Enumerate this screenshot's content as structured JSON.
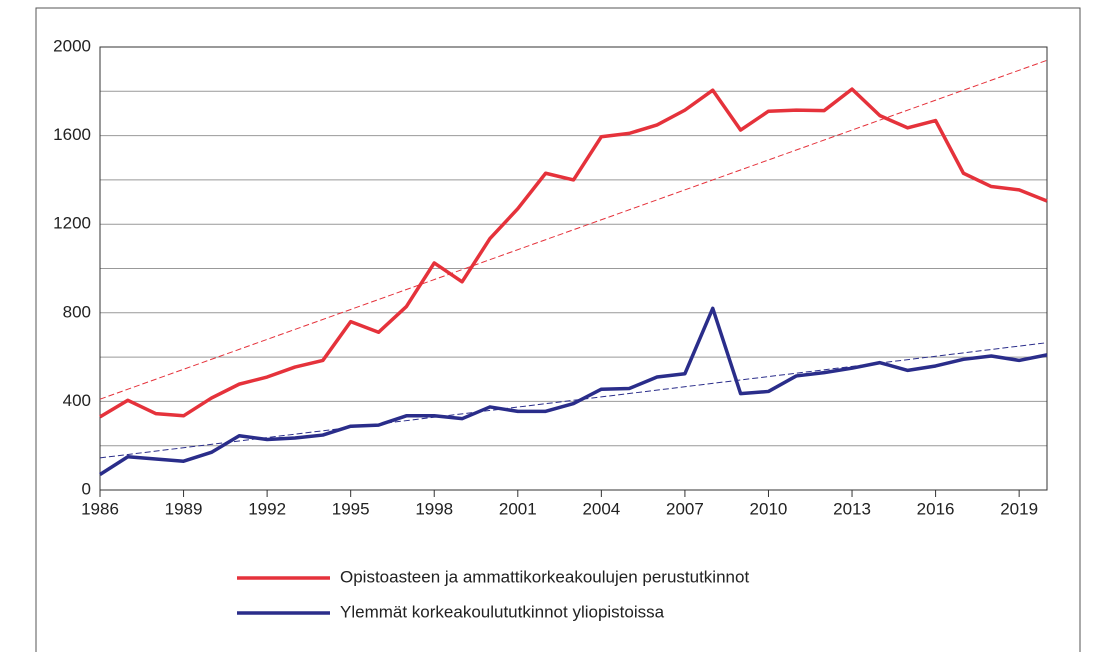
{
  "chart_data": {
    "type": "line",
    "x": [
      1986,
      1987,
      1988,
      1989,
      1990,
      1991,
      1992,
      1993,
      1994,
      1995,
      1996,
      1997,
      1998,
      1999,
      2000,
      2001,
      2002,
      2003,
      2004,
      2005,
      2006,
      2007,
      2008,
      2009,
      2010,
      2011,
      2012,
      2013,
      2014,
      2015,
      2016,
      2017,
      2018,
      2019,
      2020
    ],
    "series": [
      {
        "name": "Opistoasteen ja ammattikorkeakoulujen perustutkinnot",
        "color": "#e5323b",
        "values": [
          330,
          405,
          345,
          335,
          415,
          478,
          510,
          555,
          585,
          760,
          712,
          828,
          1025,
          940,
          1135,
          1270,
          1430,
          1400,
          1595,
          1610,
          1648,
          1715,
          1805,
          1625,
          1710,
          1715,
          1713,
          1810,
          1690,
          1635,
          1668,
          1430,
          1370,
          1355,
          1305
        ],
        "trend_values": [
          410,
          1940
        ]
      },
      {
        "name": "Ylemmät korkeakoulututkinnot yliopistoissa",
        "color": "#2a2d8a",
        "values": [
          70,
          150,
          140,
          130,
          170,
          245,
          228,
          235,
          248,
          288,
          293,
          335,
          335,
          322,
          375,
          355,
          355,
          390,
          455,
          458,
          510,
          525,
          820,
          435,
          445,
          515,
          530,
          550,
          575,
          540,
          560,
          590,
          605,
          585,
          610
        ],
        "trend_values": [
          145,
          665
        ]
      }
    ],
    "xlim": [
      1986,
      2020
    ],
    "xticks": [
      1986,
      1989,
      1992,
      1995,
      1998,
      2001,
      2004,
      2007,
      2010,
      2013,
      2016,
      2019
    ],
    "ylim": [
      0,
      2000
    ],
    "yticks": [
      0,
      400,
      800,
      1200,
      1600,
      2000
    ],
    "minor_yticks": [
      200,
      600,
      1000,
      1400,
      1800
    ],
    "grid": true
  }
}
